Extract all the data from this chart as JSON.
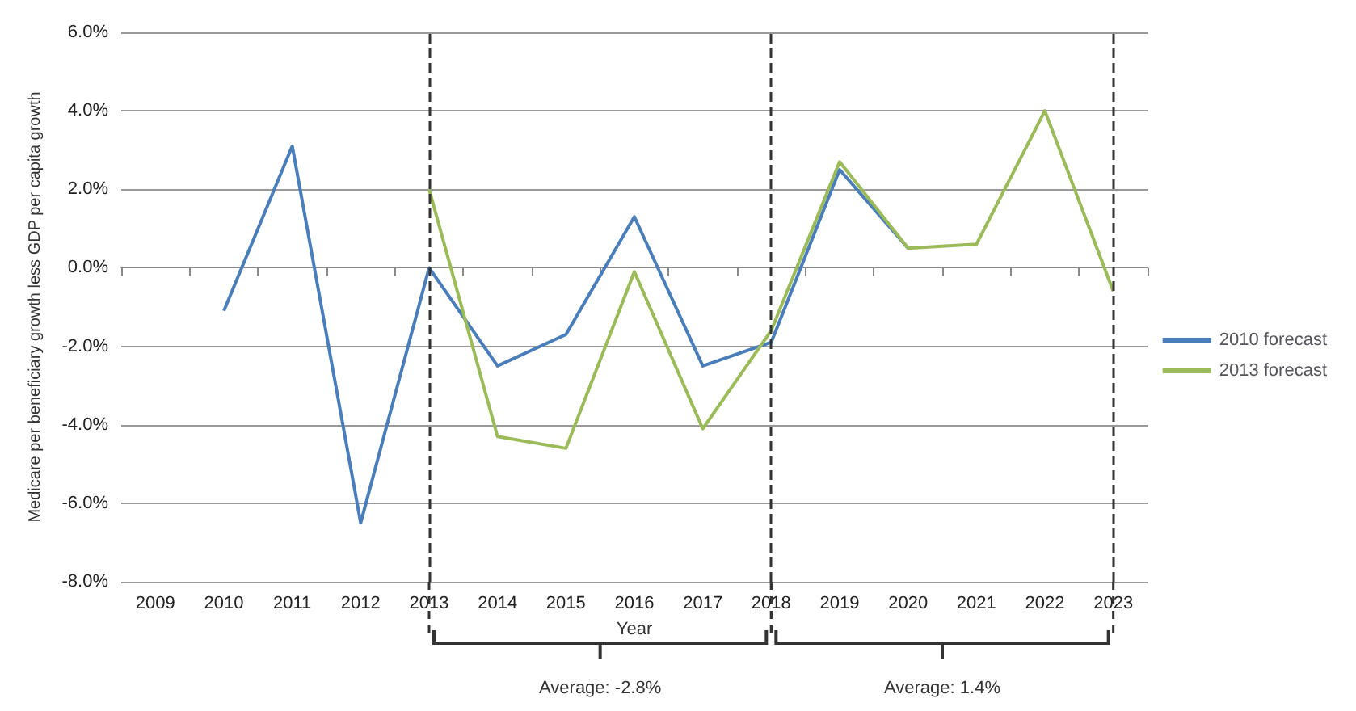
{
  "chart_data": {
    "type": "line",
    "xlabel": "Year",
    "ylabel": "Medicare per beneficiary growth less GDP per capita growth",
    "categories": [
      "2009",
      "2010",
      "2011",
      "2012",
      "2013",
      "2014",
      "2015",
      "2016",
      "2017",
      "2018",
      "2019",
      "2020",
      "2021",
      "2022",
      "2023"
    ],
    "series": [
      {
        "name": "2010 forecast",
        "color": "#4a7ebb",
        "values": [
          null,
          -1.1,
          3.1,
          -6.5,
          0.0,
          -2.5,
          -1.7,
          1.3,
          -2.5,
          -1.9,
          2.5,
          0.5,
          null,
          null,
          null
        ]
      },
      {
        "name": "2013 forecast",
        "color": "#9bbb59",
        "values": [
          null,
          null,
          null,
          null,
          2.0,
          -4.3,
          -4.6,
          -0.1,
          -4.1,
          -1.6,
          2.7,
          0.5,
          0.6,
          4.0,
          -0.6
        ]
      }
    ],
    "ylim": [
      -8,
      6
    ],
    "yticks": [
      {
        "value": -8,
        "label": "-8.0%"
      },
      {
        "value": -6,
        "label": "-6.0%"
      },
      {
        "value": -4,
        "label": "-4.0%"
      },
      {
        "value": -2,
        "label": "-2.0%"
      },
      {
        "value": 0,
        "label": "0.0%"
      },
      {
        "value": 2,
        "label": "2.0%"
      },
      {
        "value": 4,
        "label": "4.0%"
      },
      {
        "value": 6,
        "label": "6.0%"
      }
    ],
    "grid": "y",
    "legend": "right",
    "marker": "none",
    "line_style": "solid",
    "ref_lines": [
      {
        "axis": "x",
        "value": "2013",
        "color": "#333333",
        "line_style": "dashed"
      },
      {
        "axis": "x",
        "value": "2018",
        "color": "#333333",
        "line_style": "dashed"
      },
      {
        "axis": "x",
        "value": "2023",
        "color": "#333333",
        "line_style": "dashed"
      }
    ],
    "annotations": [
      "Average: -2.8%",
      "Average: 1.4%"
    ]
  }
}
